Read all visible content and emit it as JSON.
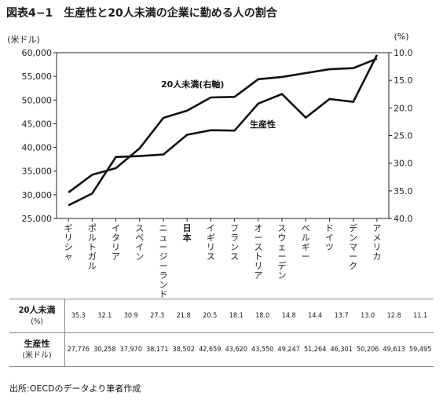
{
  "figure_label": "図表4−1",
  "title": "生産性と20人未満の企業に勤める人の割合",
  "chart_data": {
    "type": "line",
    "categories": [
      "ギリシャ",
      "ポルトガル",
      "イタリア",
      "スペイン",
      "ニュージーランド",
      "日本",
      "イギリス",
      "フランス",
      "オーストリア",
      "スウェーデン",
      "ベルギー",
      "ドイツ",
      "デンマーク",
      "アメリカ"
    ],
    "highlight_category": "日本",
    "left_axis": {
      "unit_label": "(米ドル)",
      "min": 25000,
      "max": 60000,
      "ticks": [
        "25,000",
        "30,000",
        "35,000",
        "40,000",
        "45,000",
        "50,000",
        "55,000",
        "60,000"
      ]
    },
    "right_axis": {
      "unit_label": "(%)",
      "reversed": true,
      "min": 10.0,
      "max": 40.0,
      "ticks": [
        "10.0",
        "15.0",
        "20.0",
        "25.0",
        "30.0",
        "35.0",
        "40.0"
      ]
    },
    "series": [
      {
        "name": "20人未満(右軸)",
        "axis": "right",
        "values": [
          35.3,
          32.1,
          30.9,
          27.3,
          21.8,
          20.5,
          18.1,
          18.0,
          14.8,
          14.4,
          13.7,
          13.0,
          12.8,
          11.1
        ]
      },
      {
        "name": "生産性",
        "axis": "left",
        "values": [
          27776,
          30258,
          37970,
          38171,
          38502,
          42659,
          43620,
          43550,
          49247,
          51264,
          46301,
          50206,
          49613,
          59495
        ]
      }
    ]
  },
  "table": {
    "rows": [
      {
        "label_main": "20人未満",
        "label_sub": "(%)",
        "values": [
          "35.3",
          "32.1",
          "30.9",
          "27.3",
          "21.8",
          "20.5",
          "18.1",
          "18.0",
          "14.8",
          "14.4",
          "13.7",
          "13.0",
          "12.8",
          "11.1"
        ]
      },
      {
        "label_main": "生産性",
        "label_sub": "(米ドル)",
        "values": [
          "27,776",
          "30,258",
          "37,970",
          "38,171",
          "38,502",
          "42,659",
          "43,620",
          "43,550",
          "49,247",
          "51,264",
          "46,301",
          "50,206",
          "49,613",
          "59,495"
        ]
      }
    ]
  },
  "source": "出所:OECDのデータより筆者作成"
}
